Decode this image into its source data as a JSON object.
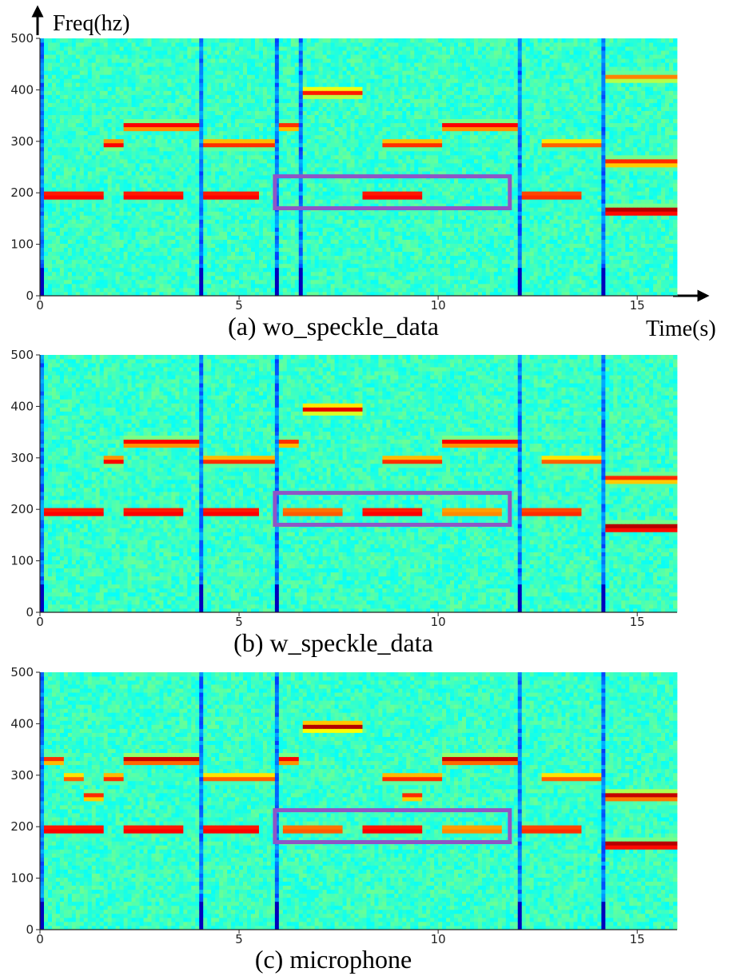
{
  "figure": {
    "y_axis_title": "Freq(hz)",
    "x_axis_title": "Time(s)"
  },
  "colors": {
    "highlight_box": "#8e55c6",
    "colormap": "jet"
  },
  "chart_data": [
    {
      "type": "heatmap",
      "caption": "(a) wo_speckle_data",
      "xlim": [
        0,
        16
      ],
      "ylim": [
        0,
        500
      ],
      "x_ticks": [
        "0",
        "5",
        "10",
        "15"
      ],
      "y_ticks": [
        "0",
        "100",
        "200",
        "300",
        "400",
        "500"
      ],
      "notes": [
        {
          "t0": 0.1,
          "t1": 1.6,
          "freq": 195,
          "level": 0.95
        },
        {
          "t0": 1.6,
          "t1": 2.1,
          "freq": 295,
          "level": 0.9
        },
        {
          "t0": 2.1,
          "t1": 3.6,
          "freq": 195,
          "level": 0.95
        },
        {
          "t0": 2.1,
          "t1": 4.0,
          "freq": 330,
          "level": 0.9
        },
        {
          "t0": 4.1,
          "t1": 5.5,
          "freq": 195,
          "level": 0.95
        },
        {
          "t0": 4.1,
          "t1": 5.9,
          "freq": 295,
          "level": 0.85
        },
        {
          "t0": 6.0,
          "t1": 6.5,
          "freq": 330,
          "level": 0.85
        },
        {
          "t0": 6.6,
          "t1": 8.1,
          "freq": 395,
          "level": 0.85
        },
        {
          "t0": 8.1,
          "t1": 9.6,
          "freq": 195,
          "level": 0.95
        },
        {
          "t0": 8.6,
          "t1": 9.6,
          "freq": 295,
          "level": 0.85
        },
        {
          "t0": 9.6,
          "t1": 10.1,
          "freq": 295,
          "level": 0.85
        },
        {
          "t0": 10.1,
          "t1": 12.0,
          "freq": 330,
          "level": 0.9
        },
        {
          "t0": 12.1,
          "t1": 13.6,
          "freq": 195,
          "level": 0.9
        },
        {
          "t0": 12.6,
          "t1": 13.6,
          "freq": 295,
          "level": 0.8
        },
        {
          "t0": 13.6,
          "t1": 14.1,
          "freq": 295,
          "level": 0.8
        },
        {
          "t0": 14.2,
          "t1": 16.0,
          "freq": 165,
          "level": 1.0
        },
        {
          "t0": 14.2,
          "t1": 16.0,
          "freq": 260,
          "level": 0.85
        },
        {
          "t0": 14.2,
          "t1": 16.0,
          "freq": 425,
          "level": 0.75
        }
      ],
      "highlight_box": {
        "t0": 5.9,
        "t1": 11.8,
        "f0": 170,
        "f1": 232
      }
    },
    {
      "type": "heatmap",
      "caption": "(b) w_speckle_data",
      "xlim": [
        0,
        16
      ],
      "ylim": [
        0,
        500
      ],
      "x_ticks": [
        "0",
        "5",
        "10",
        "15"
      ],
      "y_ticks": [
        "0",
        "100",
        "200",
        "300",
        "400",
        "500"
      ],
      "notes": [
        {
          "t0": 0.1,
          "t1": 1.6,
          "freq": 195,
          "level": 0.95
        },
        {
          "t0": 1.6,
          "t1": 2.1,
          "freq": 295,
          "level": 0.9
        },
        {
          "t0": 2.1,
          "t1": 3.6,
          "freq": 195,
          "level": 0.95
        },
        {
          "t0": 2.1,
          "t1": 4.0,
          "freq": 330,
          "level": 0.9
        },
        {
          "t0": 4.1,
          "t1": 5.5,
          "freq": 195,
          "level": 0.95
        },
        {
          "t0": 4.1,
          "t1": 5.9,
          "freq": 295,
          "level": 0.85
        },
        {
          "t0": 6.0,
          "t1": 6.5,
          "freq": 330,
          "level": 0.85
        },
        {
          "t0": 6.1,
          "t1": 7.6,
          "freq": 195,
          "level": 0.85
        },
        {
          "t0": 6.6,
          "t1": 8.1,
          "freq": 395,
          "level": 0.9
        },
        {
          "t0": 8.1,
          "t1": 9.6,
          "freq": 195,
          "level": 0.95
        },
        {
          "t0": 8.6,
          "t1": 9.6,
          "freq": 295,
          "level": 0.85
        },
        {
          "t0": 9.6,
          "t1": 10.1,
          "freq": 295,
          "level": 0.85
        },
        {
          "t0": 10.1,
          "t1": 12.0,
          "freq": 330,
          "level": 0.9
        },
        {
          "t0": 10.1,
          "t1": 11.6,
          "freq": 195,
          "level": 0.8
        },
        {
          "t0": 12.1,
          "t1": 13.6,
          "freq": 195,
          "level": 0.9
        },
        {
          "t0": 12.6,
          "t1": 13.6,
          "freq": 295,
          "level": 0.8
        },
        {
          "t0": 13.6,
          "t1": 14.1,
          "freq": 295,
          "level": 0.8
        },
        {
          "t0": 14.2,
          "t1": 16.0,
          "freq": 165,
          "level": 1.0
        },
        {
          "t0": 14.2,
          "t1": 16.0,
          "freq": 260,
          "level": 0.85
        }
      ],
      "highlight_box": {
        "t0": 5.9,
        "t1": 11.8,
        "f0": 170,
        "f1": 232
      }
    },
    {
      "type": "heatmap",
      "caption": "(c) microphone",
      "xlim": [
        0,
        16
      ],
      "ylim": [
        0,
        500
      ],
      "x_ticks": [
        "0",
        "5",
        "10",
        "15"
      ],
      "y_ticks": [
        "0",
        "100",
        "200",
        "300",
        "400",
        "500"
      ],
      "notes": [
        {
          "t0": 0.1,
          "t1": 1.6,
          "freq": 195,
          "level": 0.95
        },
        {
          "t0": 0.1,
          "t1": 0.6,
          "freq": 330,
          "level": 0.85
        },
        {
          "t0": 0.6,
          "t1": 1.1,
          "freq": 295,
          "level": 0.8
        },
        {
          "t0": 1.1,
          "t1": 1.6,
          "freq": 260,
          "level": 0.85
        },
        {
          "t0": 1.6,
          "t1": 2.1,
          "freq": 295,
          "level": 0.85
        },
        {
          "t0": 2.1,
          "t1": 3.6,
          "freq": 195,
          "level": 0.95
        },
        {
          "t0": 2.1,
          "t1": 4.0,
          "freq": 330,
          "level": 0.95
        },
        {
          "t0": 4.1,
          "t1": 5.5,
          "freq": 195,
          "level": 0.95
        },
        {
          "t0": 4.1,
          "t1": 5.9,
          "freq": 295,
          "level": 0.8
        },
        {
          "t0": 6.0,
          "t1": 6.5,
          "freq": 330,
          "level": 0.9
        },
        {
          "t0": 6.1,
          "t1": 7.6,
          "freq": 195,
          "level": 0.85
        },
        {
          "t0": 6.6,
          "t1": 8.1,
          "freq": 395,
          "level": 0.95
        },
        {
          "t0": 8.1,
          "t1": 9.6,
          "freq": 195,
          "level": 0.95
        },
        {
          "t0": 8.6,
          "t1": 9.6,
          "freq": 295,
          "level": 0.85
        },
        {
          "t0": 9.1,
          "t1": 9.6,
          "freq": 260,
          "level": 0.85
        },
        {
          "t0": 9.6,
          "t1": 10.1,
          "freq": 295,
          "level": 0.85
        },
        {
          "t0": 10.1,
          "t1": 12.0,
          "freq": 330,
          "level": 0.95
        },
        {
          "t0": 10.1,
          "t1": 11.6,
          "freq": 195,
          "level": 0.8
        },
        {
          "t0": 12.1,
          "t1": 13.6,
          "freq": 195,
          "level": 0.9
        },
        {
          "t0": 12.6,
          "t1": 13.6,
          "freq": 295,
          "level": 0.8
        },
        {
          "t0": 13.6,
          "t1": 14.1,
          "freq": 295,
          "level": 0.8
        },
        {
          "t0": 14.2,
          "t1": 16.0,
          "freq": 165,
          "level": 1.0
        },
        {
          "t0": 14.2,
          "t1": 16.0,
          "freq": 260,
          "level": 0.95
        }
      ],
      "highlight_box": {
        "t0": 5.9,
        "t1": 11.8,
        "f0": 170,
        "f1": 232
      }
    }
  ]
}
